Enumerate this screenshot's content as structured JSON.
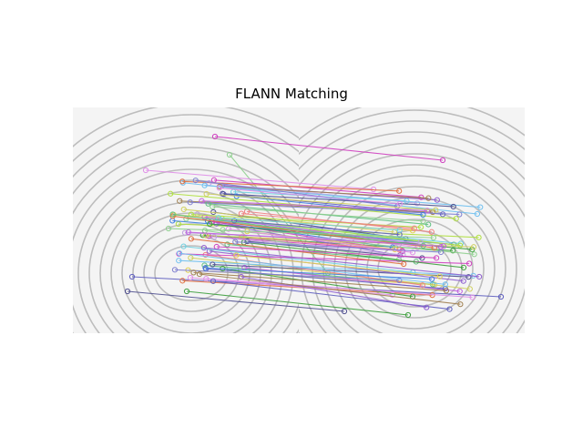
{
  "figure": {
    "title": "FLANN Matching"
  },
  "image_panels": [
    {
      "name": "left-fingerprint-image"
    },
    {
      "name": "right-fingerprint-image"
    }
  ],
  "match_count_visible": 90,
  "line_colors": [
    "#d040c0",
    "#8fd08f",
    "#e090e8",
    "#9060d0",
    "#6060c0",
    "#70c0f0",
    "#b0e040",
    "#40a040",
    "#e07040",
    "#505090",
    "#c0a0e0",
    "#e0d050",
    "#70d0e0",
    "#a08050",
    "#4080e0",
    "#f08080",
    "#60c080",
    "#8080d0",
    "#d0d060",
    "#c060e0"
  ]
}
